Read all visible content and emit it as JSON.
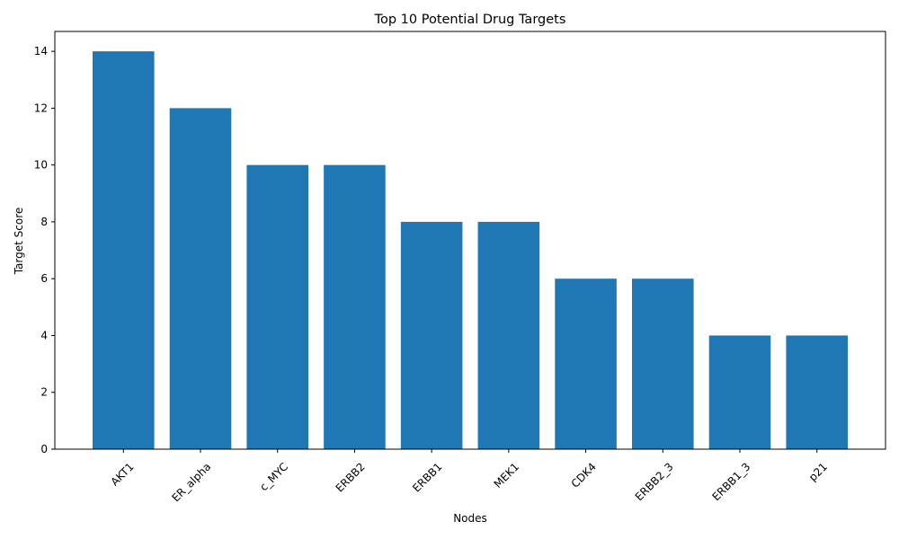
{
  "chart_data": {
    "type": "bar",
    "title": "Top 10 Potential Drug Targets",
    "xlabel": "Nodes",
    "ylabel": "Target Score",
    "categories": [
      "AKT1",
      "ER_alpha",
      "c_MYC",
      "ERBB2",
      "ERBB1",
      "MEK1",
      "CDK4",
      "ERBB2_3",
      "ERBB1_3",
      "p21"
    ],
    "values": [
      14,
      12,
      10,
      10,
      8,
      8,
      6,
      6,
      4,
      4
    ],
    "ylim": [
      0,
      14.7
    ],
    "yticks": [
      0,
      2,
      4,
      6,
      8,
      10,
      12,
      14
    ],
    "bar_color": "#1f77b4",
    "grid": false,
    "legend": false
  }
}
